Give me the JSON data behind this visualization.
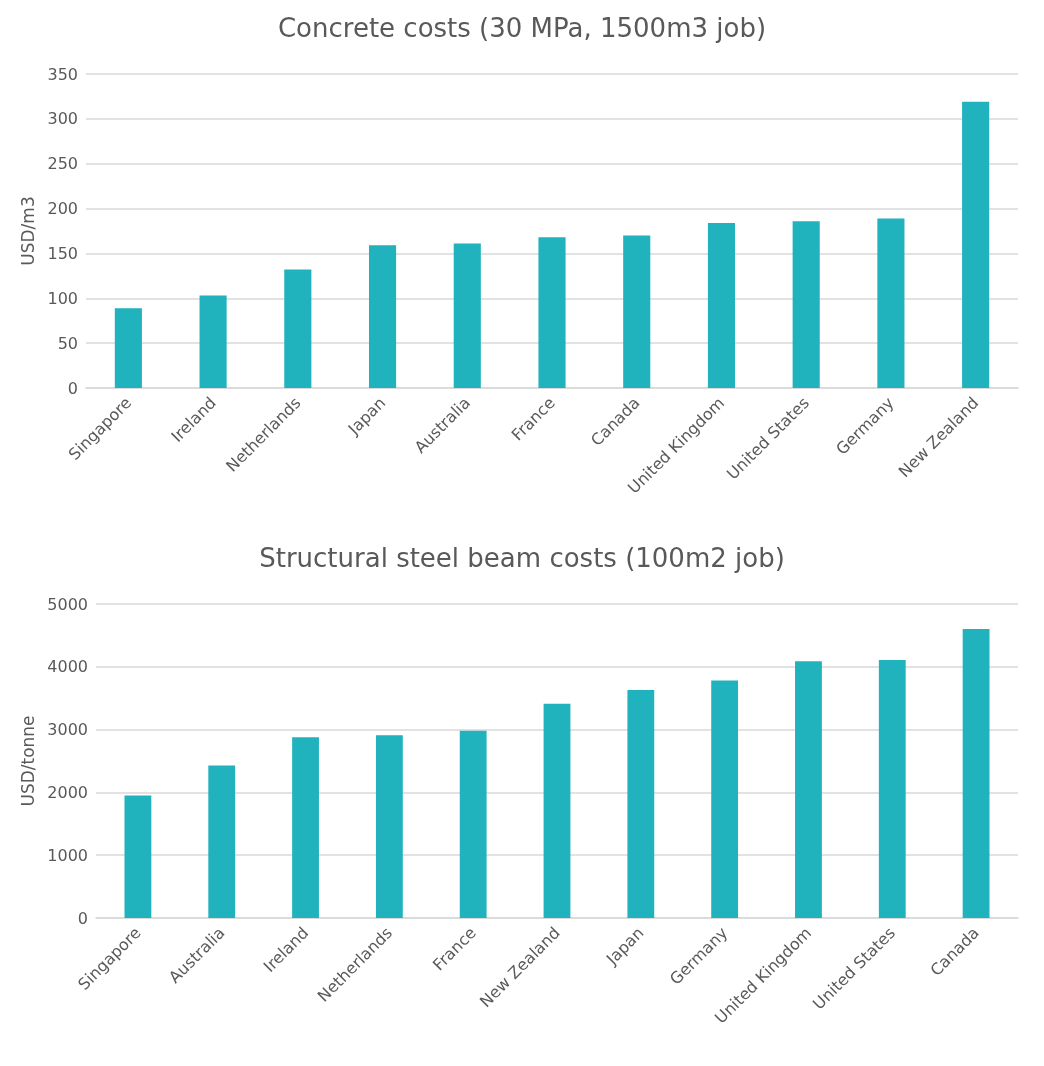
{
  "chart_data": [
    {
      "type": "bar",
      "title": "Concrete costs (30 MPa, 1500m3 job)",
      "ylabel": "USD/m3",
      "categories": [
        "Singapore",
        "Ireland",
        "Netherlands",
        "Japan",
        "Australia",
        "France",
        "Canada",
        "United Kingdom",
        "United States",
        "Germany",
        "New Zealand"
      ],
      "values": [
        89,
        103,
        132,
        159,
        161,
        168,
        170,
        184,
        186,
        189,
        319
      ],
      "color": "#20b2bd",
      "ylim": [
        0,
        350
      ],
      "yticks": [
        0,
        50,
        100,
        150,
        200,
        250,
        300,
        350
      ],
      "grid": "y"
    },
    {
      "type": "bar",
      "title": "Structural steel beam costs (100m2 job)",
      "ylabel": "USD/tonne",
      "categories": [
        "Singapore",
        "Australia",
        "Ireland",
        "Netherlands",
        "France",
        "New Zealand",
        "Japan",
        "Germany",
        "United Kingdom",
        "United States",
        "Canada"
      ],
      "values": [
        1950,
        2430,
        2880,
        2910,
        2980,
        3410,
        3630,
        3780,
        4090,
        4110,
        4600
      ],
      "color": "#20b2bd",
      "ylim": [
        0,
        5000
      ],
      "yticks": [
        0,
        1000,
        2000,
        3000,
        4000,
        5000
      ],
      "grid": "y"
    }
  ]
}
